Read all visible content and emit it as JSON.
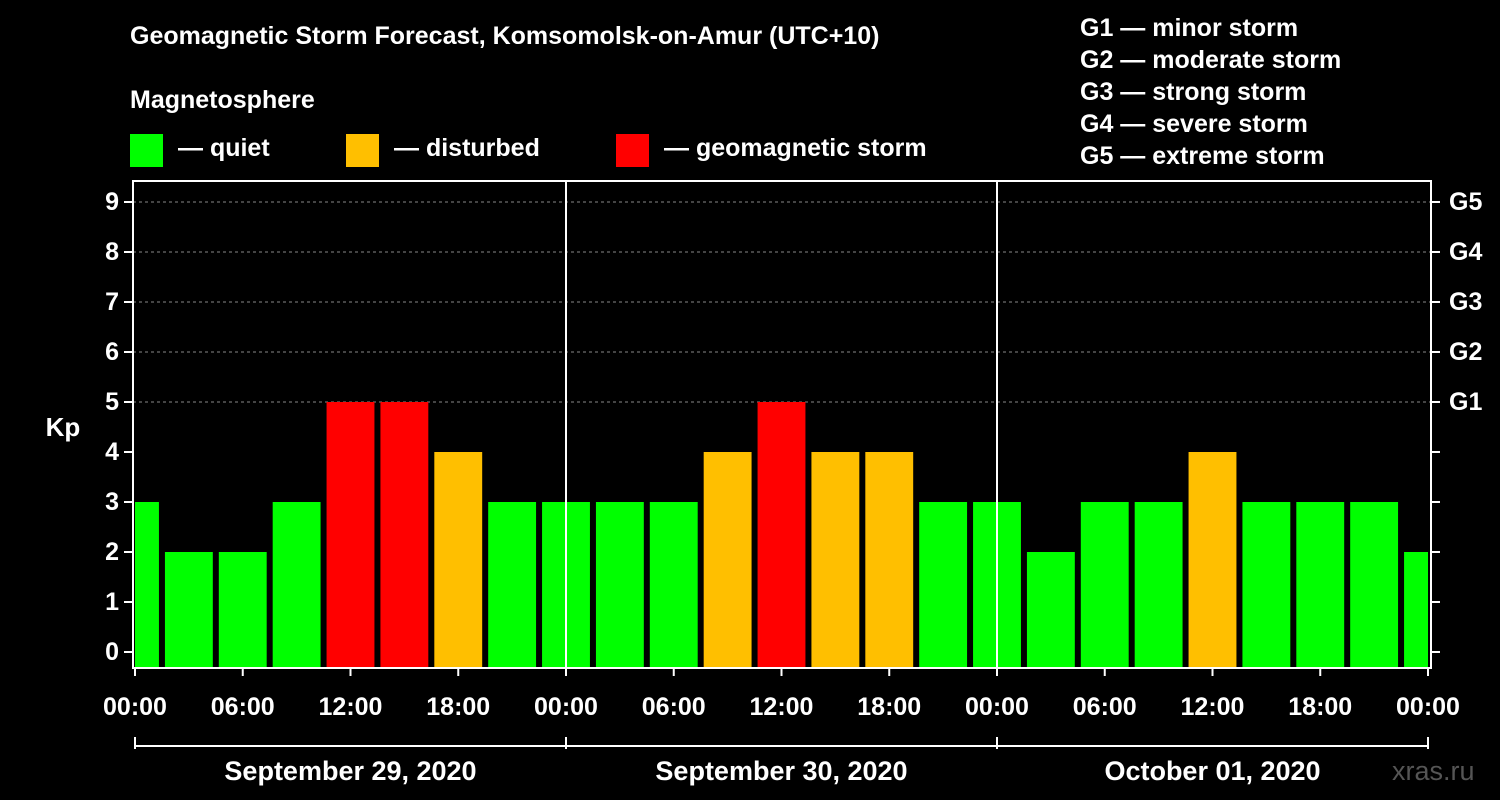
{
  "title": "Geomagnetic Storm Forecast, Komsomolsk-on-Amur (UTC+10)",
  "legend": {
    "heading": "Magnetosphere",
    "items": [
      {
        "label": "— quiet",
        "color": "#00ff00"
      },
      {
        "label": "— disturbed",
        "color": "#ffbf00"
      },
      {
        "label": "— geomagnetic storm",
        "color": "#ff0000"
      }
    ]
  },
  "g_scale": [
    "G1 — minor storm",
    "G2 — moderate storm",
    "G3 — strong storm",
    "G4 — severe storm",
    "G5 — extreme storm"
  ],
  "watermark": "xras.ru",
  "chart_data": {
    "type": "bar",
    "title": "Geomagnetic Storm Forecast, Komsomolsk-on-Amur (UTC+10)",
    "ylabel": "Kp",
    "ylim": [
      0,
      9
    ],
    "yticks": [
      "0",
      "1",
      "2",
      "3",
      "4",
      "5",
      "6",
      "7",
      "8",
      "9"
    ],
    "right_ticks": [
      {
        "kp": 5,
        "label": "G1"
      },
      {
        "kp": 6,
        "label": "G2"
      },
      {
        "kp": 7,
        "label": "G3"
      },
      {
        "kp": 8,
        "label": "G4"
      },
      {
        "kp": 9,
        "label": "G5"
      }
    ],
    "xtick_labels": [
      "00:00",
      "06:00",
      "12:00",
      "18:00",
      "00:00",
      "06:00",
      "12:00",
      "18:00",
      "00:00",
      "06:00",
      "12:00",
      "18:00",
      "00:00"
    ],
    "days": [
      "September 29, 2020",
      "September 30, 2020",
      "October 01, 2020"
    ],
    "bar_interval_hours": 3,
    "values": [
      3,
      2,
      2,
      3,
      5,
      5,
      4,
      3,
      3,
      3,
      3,
      4,
      5,
      4,
      4,
      3,
      3,
      2,
      3,
      3,
      4,
      3,
      3,
      3,
      2
    ],
    "colors": {
      "quiet": "#00ff00",
      "disturbed": "#ffbf00",
      "storm": "#ff0000"
    }
  }
}
